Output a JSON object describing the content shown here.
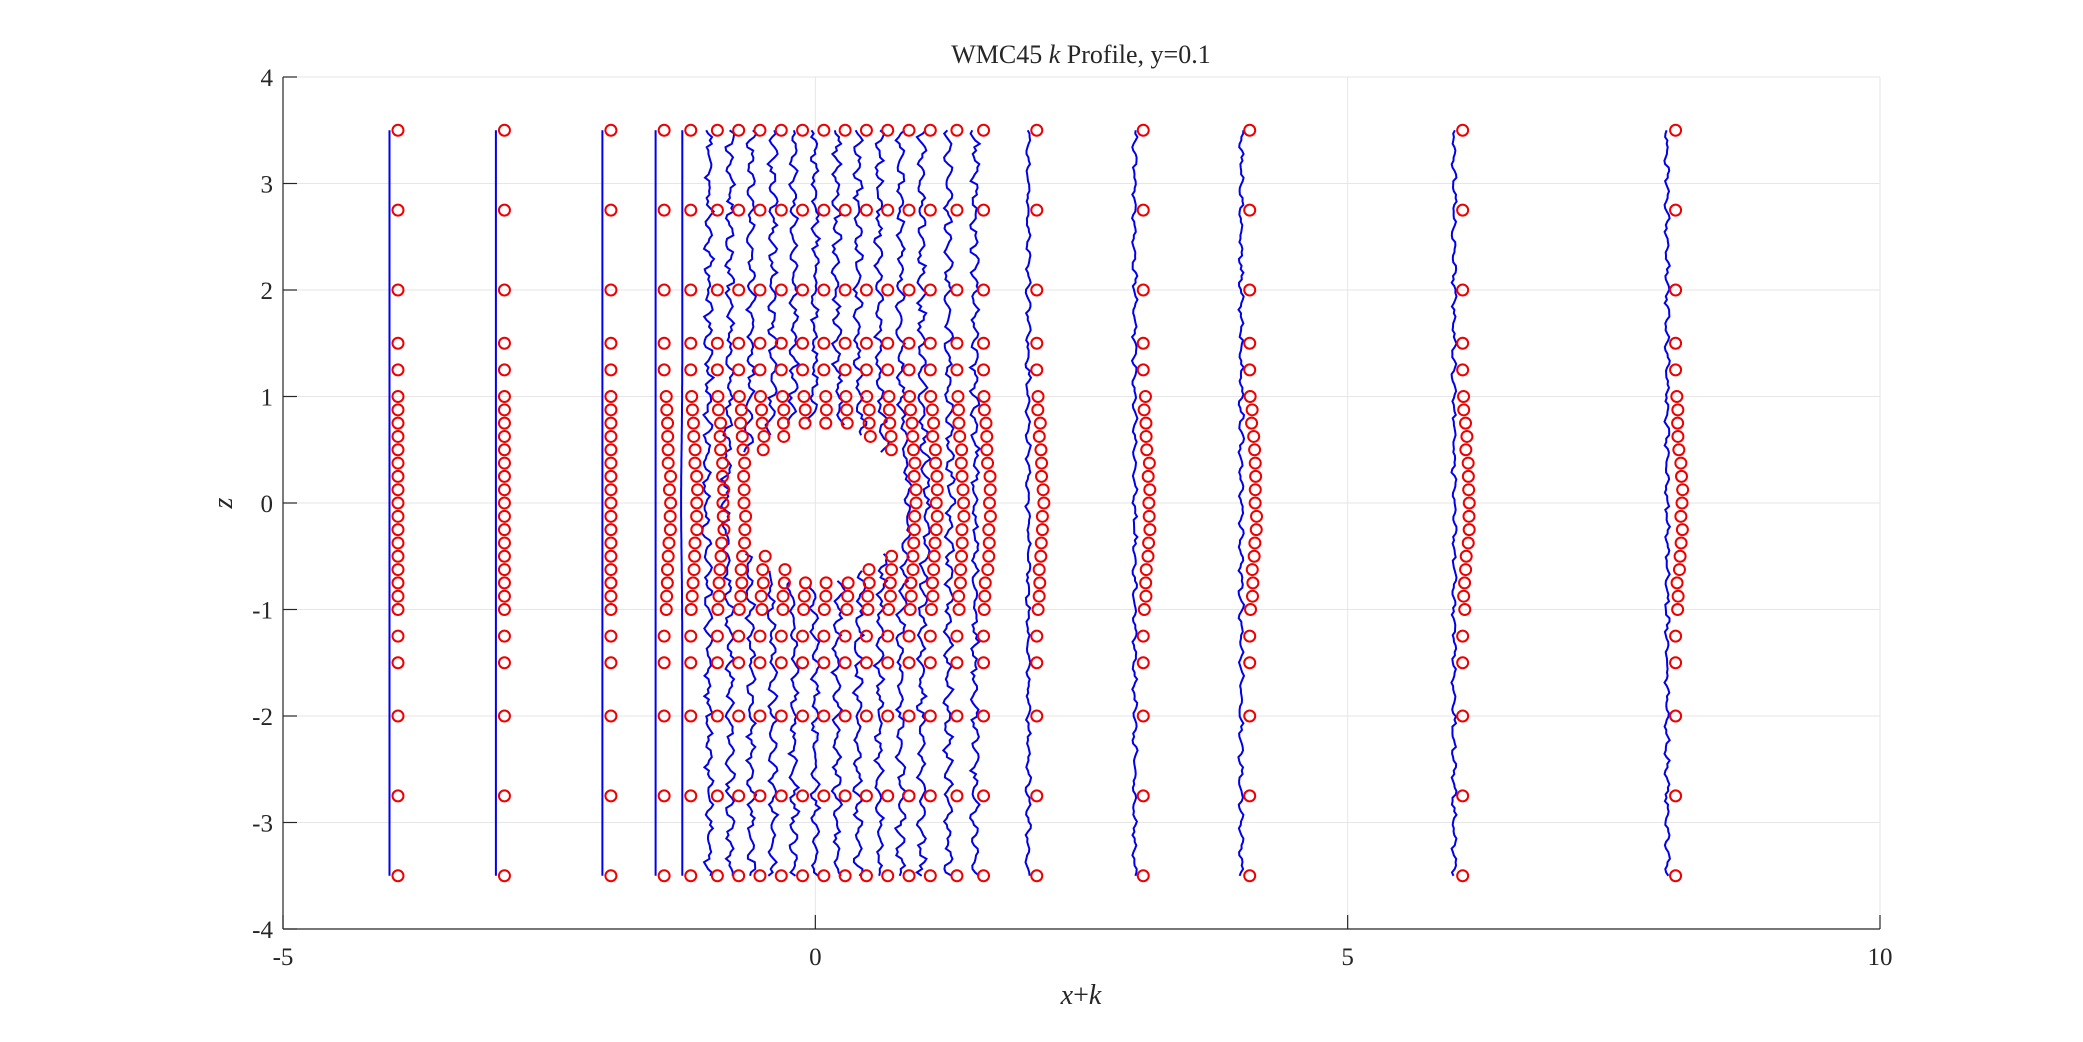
{
  "chart_data": {
    "type": "line",
    "title_parts": {
      "prefix": "WMC45 ",
      "var": "k",
      "suffix": " Profile, y=0.1"
    },
    "xlabel_parts": {
      "a": "x",
      "op": "+",
      "b": "k"
    },
    "ylabel": "z",
    "xlim": [
      -5,
      10
    ],
    "ylim": [
      -4,
      4
    ],
    "xticks": [
      -5,
      0,
      5,
      10
    ],
    "yticks": [
      -4,
      -3,
      -2,
      -1,
      0,
      1,
      2,
      3,
      4
    ],
    "grid": true,
    "colors": {
      "profile": "#0000ee",
      "marker": "#ee0000",
      "axis": "#262626",
      "grid": "#e6e6e6"
    },
    "stations_x": [
      -4,
      -3,
      -2,
      -1.5,
      -1.25,
      -1,
      -0.8,
      -0.6,
      -0.4,
      -0.2,
      0,
      0.2,
      0.4,
      0.6,
      0.8,
      1,
      1.25,
      1.5,
      2,
      3,
      4,
      6,
      8
    ],
    "marker_z": [
      3.5,
      2.75,
      2,
      1.5,
      1.25,
      1,
      0.875,
      0.75,
      0.625,
      0.5,
      0.375,
      0.25,
      0.125,
      0,
      -0.125,
      -0.25,
      -0.375,
      -0.5,
      -0.625,
      -0.75,
      -0.875,
      -1,
      -1.25,
      -1.5,
      -2,
      -2.75,
      -3.5
    ],
    "body_radius": 0.75
  }
}
